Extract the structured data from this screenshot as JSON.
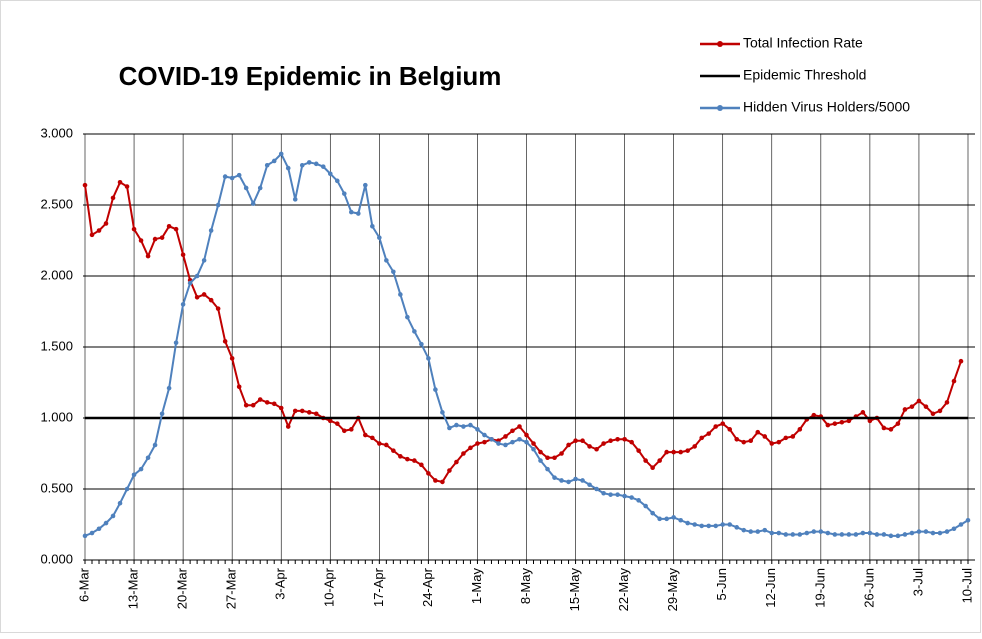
{
  "chart_data": {
    "type": "line",
    "title": "COVID-19 Epidemic in Belgium",
    "categories": [
      "6-Mar",
      null,
      null,
      null,
      null,
      null,
      null,
      "13-Mar",
      null,
      null,
      null,
      null,
      null,
      null,
      "20-Mar",
      null,
      null,
      null,
      null,
      null,
      null,
      "27-Mar",
      null,
      null,
      null,
      null,
      null,
      null,
      "3-Apr",
      null,
      null,
      null,
      null,
      null,
      null,
      "10-Apr",
      null,
      null,
      null,
      null,
      null,
      null,
      "17-Apr",
      null,
      null,
      null,
      null,
      null,
      null,
      "24-Apr",
      null,
      null,
      null,
      null,
      null,
      null,
      "1-May",
      null,
      null,
      null,
      null,
      null,
      null,
      "8-May",
      null,
      null,
      null,
      null,
      null,
      null,
      "15-May",
      null,
      null,
      null,
      null,
      null,
      null,
      "22-May",
      null,
      null,
      null,
      null,
      null,
      null,
      "29-May",
      null,
      null,
      null,
      null,
      null,
      null,
      "5-Jun",
      null,
      null,
      null,
      null,
      null,
      null,
      "12-Jun",
      null,
      null,
      null,
      null,
      null,
      null,
      "19-Jun",
      null,
      null,
      null,
      null,
      null,
      null,
      "26-Jun",
      null,
      null,
      null,
      null,
      null,
      null,
      "3-Jul",
      null,
      null,
      null,
      null,
      null,
      null,
      "10-Jul"
    ],
    "series": [
      {
        "name": "Total Infection Rate",
        "color": "#c00000",
        "markers": true,
        "values": [
          2.64,
          2.29,
          2.32,
          2.37,
          2.55,
          2.66,
          2.63,
          2.33,
          2.25,
          2.14,
          2.26,
          2.27,
          2.35,
          2.33,
          2.15,
          1.97,
          1.85,
          1.87,
          1.83,
          1.77,
          1.54,
          1.42,
          1.22,
          1.09,
          1.09,
          1.13,
          1.11,
          1.1,
          1.07,
          0.94,
          1.05,
          1.05,
          1.04,
          1.03,
          1.0,
          0.98,
          0.96,
          0.91,
          0.92,
          1.0,
          0.88,
          0.86,
          0.82,
          0.81,
          0.77,
          0.73,
          0.71,
          0.7,
          0.67,
          0.61,
          0.56,
          0.55,
          0.63,
          0.69,
          0.75,
          0.79,
          0.82,
          0.83,
          0.85,
          0.84,
          0.87,
          0.91,
          0.94,
          0.88,
          0.82,
          0.76,
          0.72,
          0.72,
          0.75,
          0.81,
          0.84,
          0.84,
          0.8,
          0.78,
          0.82,
          0.84,
          0.85,
          0.85,
          0.83,
          0.77,
          0.7,
          0.65,
          0.7,
          0.76,
          0.76,
          0.76,
          0.77,
          0.8,
          0.86,
          0.89,
          0.94,
          0.96,
          0.92,
          0.85,
          0.83,
          0.84,
          0.9,
          0.87,
          0.82,
          0.83,
          0.86,
          0.87,
          0.92,
          0.99,
          1.02,
          1.01,
          0.95,
          0.96,
          0.97,
          0.98,
          1.01,
          1.04,
          0.98,
          1.0,
          0.93,
          0.92,
          0.96,
          1.06,
          1.08,
          1.12,
          1.08,
          1.03,
          1.05,
          1.11,
          1.26,
          1.4,
          null
        ]
      },
      {
        "name": "Epidemic Threshold",
        "color": "#000000",
        "markers": false,
        "values": [
          1,
          1,
          1,
          1,
          1,
          1,
          1,
          1,
          1,
          1,
          1,
          1,
          1,
          1,
          1,
          1,
          1,
          1,
          1,
          1,
          1,
          1,
          1,
          1,
          1,
          1,
          1,
          1,
          1,
          1,
          1,
          1,
          1,
          1,
          1,
          1,
          1,
          1,
          1,
          1,
          1,
          1,
          1,
          1,
          1,
          1,
          1,
          1,
          1,
          1,
          1,
          1,
          1,
          1,
          1,
          1,
          1,
          1,
          1,
          1,
          1,
          1,
          1,
          1,
          1,
          1,
          1,
          1,
          1,
          1,
          1,
          1,
          1,
          1,
          1,
          1,
          1,
          1,
          1,
          1,
          1,
          1,
          1,
          1,
          1,
          1,
          1,
          1,
          1,
          1,
          1,
          1,
          1,
          1,
          1,
          1,
          1,
          1,
          1,
          1,
          1,
          1,
          1,
          1,
          1,
          1,
          1,
          1,
          1,
          1,
          1,
          1,
          1,
          1,
          1,
          1,
          1,
          1,
          1,
          1,
          1,
          1,
          1,
          1,
          1,
          1,
          1
        ]
      },
      {
        "name": "Hidden Virus Holders/5000",
        "color": "#4f81bd",
        "markers": true,
        "values": [
          0.17,
          0.19,
          0.22,
          0.26,
          0.31,
          0.4,
          0.5,
          0.6,
          0.64,
          0.72,
          0.81,
          1.03,
          1.21,
          1.53,
          1.8,
          1.95,
          2.0,
          2.11,
          2.32,
          2.5,
          2.7,
          2.69,
          2.71,
          2.62,
          2.51,
          2.62,
          2.78,
          2.81,
          2.86,
          2.76,
          2.54,
          2.78,
          2.8,
          2.79,
          2.77,
          2.72,
          2.67,
          2.58,
          2.45,
          2.44,
          2.64,
          2.35,
          2.27,
          2.11,
          2.03,
          1.87,
          1.71,
          1.61,
          1.52,
          1.42,
          1.2,
          1.04,
          0.93,
          0.95,
          0.94,
          0.95,
          0.92,
          0.88,
          0.85,
          0.82,
          0.81,
          0.83,
          0.85,
          0.83,
          0.78,
          0.7,
          0.64,
          0.58,
          0.56,
          0.55,
          0.57,
          0.56,
          0.53,
          0.5,
          0.47,
          0.46,
          0.46,
          0.45,
          0.44,
          0.42,
          0.38,
          0.33,
          0.29,
          0.29,
          0.3,
          0.28,
          0.26,
          0.25,
          0.24,
          0.24,
          0.24,
          0.25,
          0.25,
          0.23,
          0.21,
          0.2,
          0.2,
          0.21,
          0.19,
          0.19,
          0.18,
          0.18,
          0.18,
          0.19,
          0.2,
          0.2,
          0.19,
          0.18,
          0.18,
          0.18,
          0.18,
          0.19,
          0.19,
          0.18,
          0.18,
          0.17,
          0.17,
          0.18,
          0.19,
          0.2,
          0.2,
          0.19,
          0.19,
          0.2,
          0.22,
          0.25,
          0.28
        ]
      }
    ],
    "ylim": [
      0,
      3
    ],
    "yticks": [
      {
        "value": 0,
        "label": "0.000"
      },
      {
        "value": 0.5,
        "label": "0.500"
      },
      {
        "value": 1,
        "label": "1.000"
      },
      {
        "value": 1.5,
        "label": "1.500"
      },
      {
        "value": 2,
        "label": "2.000"
      },
      {
        "value": 2.5,
        "label": "2.500"
      },
      {
        "value": 3,
        "label": "3.000"
      }
    ],
    "grid": true,
    "legend": "top-right"
  }
}
